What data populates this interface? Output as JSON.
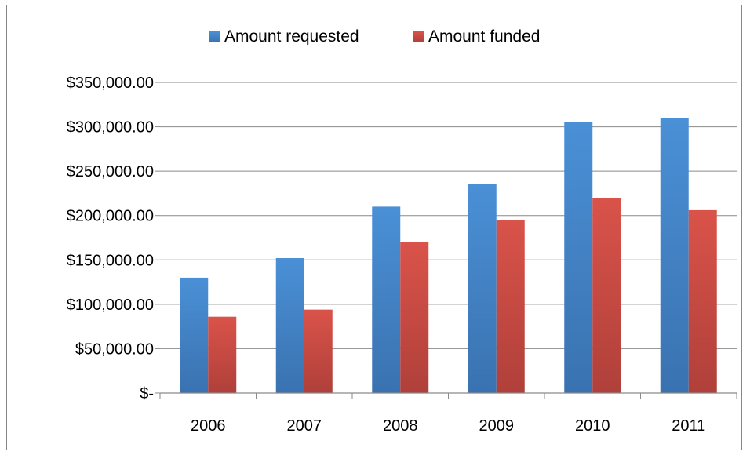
{
  "chart_data": {
    "type": "bar",
    "categories": [
      "2006",
      "2007",
      "2008",
      "2009",
      "2010",
      "2011"
    ],
    "series": [
      {
        "name": "Amount requested",
        "values": [
          130000,
          152000,
          210000,
          236000,
          305000,
          310000
        ],
        "color": "#4a90d6",
        "color_dark": "#3a72b0"
      },
      {
        "name": "Amount funded",
        "values": [
          86000,
          94000,
          170000,
          195000,
          220000,
          206000
        ],
        "color": "#d9534a",
        "color_dark": "#b0403a"
      }
    ],
    "ylim": [
      0,
      350000
    ],
    "yticks": [
      0,
      50000,
      100000,
      150000,
      200000,
      250000,
      300000,
      350000
    ],
    "ytick_labels": [
      "$-",
      "$50,000.00",
      "$100,000.00",
      "$150,000.00",
      "$200,000.00",
      "$250,000.00",
      "$300,000.00",
      "$350,000.00"
    ],
    "grid": true,
    "legend_position": "top-center",
    "gridline_color": "#8a8a8a"
  }
}
